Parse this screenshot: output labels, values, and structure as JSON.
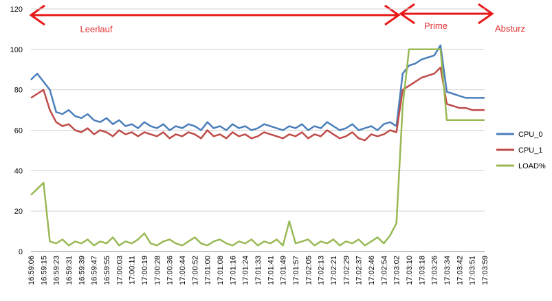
{
  "chart_data": {
    "type": "line",
    "categories": [
      "16:59:06",
      null,
      "16:59:15",
      null,
      "16:59:23",
      null,
      "16:59:31",
      null,
      "16:59:39",
      null,
      "16:59:47",
      null,
      "16:59:55",
      null,
      "17:00:03",
      null,
      "17:00:11",
      null,
      "17:00:19",
      null,
      "17:00:28",
      null,
      "17:00:36",
      null,
      "17:00:44",
      null,
      "17:00:52",
      null,
      "17:01:00",
      null,
      "17:01:08",
      null,
      "17:01:16",
      null,
      "17:01:24",
      null,
      "17:01:33",
      null,
      "17:01:41",
      null,
      "17:01:49",
      null,
      "17:01:57",
      null,
      "17:02:05",
      null,
      "17:02:13",
      null,
      "17:02:21",
      null,
      "17:02:29",
      null,
      "17:02:37",
      null,
      "17:02:46",
      null,
      "17:02:54",
      null,
      "17:03:02",
      null,
      "17:03:10",
      null,
      "17:03:18",
      null,
      "17:03:26",
      null,
      "17:03:34",
      null,
      "17:03:42",
      null,
      "17:03:51",
      null,
      "17:03:59"
    ],
    "series": [
      {
        "name": "CPU_0",
        "color": "#4a7ebb",
        "values": [
          85,
          88,
          84,
          80,
          69,
          68,
          70,
          67,
          66,
          68,
          65,
          64,
          66,
          63,
          65,
          62,
          63,
          61,
          64,
          62,
          61,
          63,
          60,
          62,
          61,
          63,
          62,
          60,
          64,
          61,
          62,
          60,
          63,
          61,
          62,
          60,
          61,
          63,
          62,
          61,
          60,
          62,
          61,
          63,
          60,
          62,
          61,
          64,
          62,
          60,
          61,
          63,
          60,
          61,
          62,
          60,
          63,
          64,
          62,
          88,
          92,
          93,
          95,
          96,
          97,
          102,
          79,
          78,
          77,
          76,
          76,
          76,
          76
        ]
      },
      {
        "name": "CPU_1",
        "color": "#be4b48",
        "values": [
          76,
          78,
          80,
          70,
          64,
          62,
          63,
          60,
          59,
          61,
          58,
          60,
          59,
          57,
          60,
          58,
          59,
          57,
          59,
          58,
          57,
          59,
          56,
          58,
          57,
          59,
          58,
          56,
          60,
          57,
          58,
          56,
          59,
          57,
          58,
          56,
          57,
          59,
          58,
          57,
          56,
          58,
          57,
          59,
          56,
          58,
          57,
          60,
          58,
          56,
          57,
          59,
          56,
          55,
          58,
          57,
          58,
          60,
          59,
          80,
          82,
          84,
          86,
          87,
          88,
          91,
          73,
          72,
          71,
          71,
          70,
          70,
          70
        ]
      },
      {
        "name": "LOAD%",
        "color": "#98b954",
        "values": [
          28,
          31,
          34,
          5,
          4,
          6,
          3,
          5,
          4,
          6,
          3,
          5,
          4,
          7,
          3,
          5,
          4,
          6,
          9,
          4,
          3,
          5,
          6,
          4,
          3,
          5,
          7,
          4,
          3,
          5,
          6,
          4,
          3,
          5,
          4,
          6,
          3,
          5,
          4,
          6,
          3,
          15,
          4,
          5,
          6,
          3,
          5,
          4,
          6,
          3,
          5,
          4,
          6,
          3,
          5,
          7,
          4,
          8,
          14,
          72,
          100,
          100,
          100,
          100,
          100,
          100,
          65,
          65,
          65,
          65,
          65,
          65,
          65
        ]
      }
    ],
    "ylim": [
      0,
      120
    ],
    "yticks": [
      0,
      20,
      40,
      60,
      80,
      100,
      120
    ],
    "grid": true,
    "legend": "right",
    "annotations": [
      "Leerlauf",
      "Prime",
      "Absturz"
    ]
  }
}
